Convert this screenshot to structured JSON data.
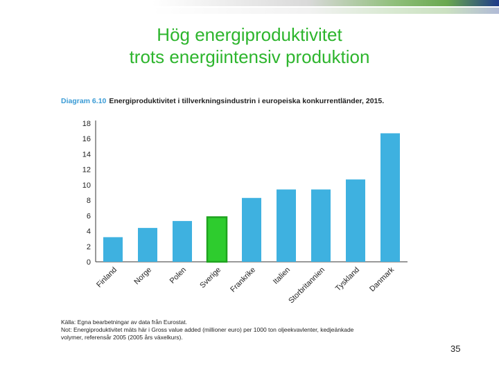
{
  "slide": {
    "title_line1": "Hög energiproduktivitet",
    "title_line2": "trots energiintensiv produktion",
    "page_number": "35",
    "title_color": "#2db52d"
  },
  "chart_caption": {
    "label": "Diagram 6.10",
    "text": "Energiproduktivitet i tillverkningsindustrin i europeiska konkurrentländer, 2015."
  },
  "source_note": {
    "line1": "Källa: Egna bearbetningar av data från Eurostat.",
    "line2": "Not: Energiproduktivitet mäts här i Gross value added (millioner euro) per 1000 ton oljeekvavlenter, kedjeänkade",
    "line3": "volymer, referensår 2005 (2005 års växelkurs)."
  },
  "chart_data": {
    "type": "bar",
    "categories": [
      "Finland",
      "Norge",
      "Polen",
      "Sverige",
      "Frankrike",
      "Italien",
      "Storbritannien",
      "Tyskland",
      "Danmark"
    ],
    "values": [
      3.2,
      4.4,
      5.3,
      5.8,
      8.3,
      9.4,
      9.4,
      10.7,
      16.7
    ],
    "highlight": "Sverige",
    "colors": {
      "bar": "#3eb1e0",
      "highlight_fill": "#2ecc2e",
      "highlight_stroke": "#1fa31f"
    },
    "ylim": [
      0,
      18
    ],
    "yticks": [
      0,
      2,
      4,
      6,
      8,
      10,
      12,
      14,
      16,
      18
    ],
    "grid": false
  }
}
